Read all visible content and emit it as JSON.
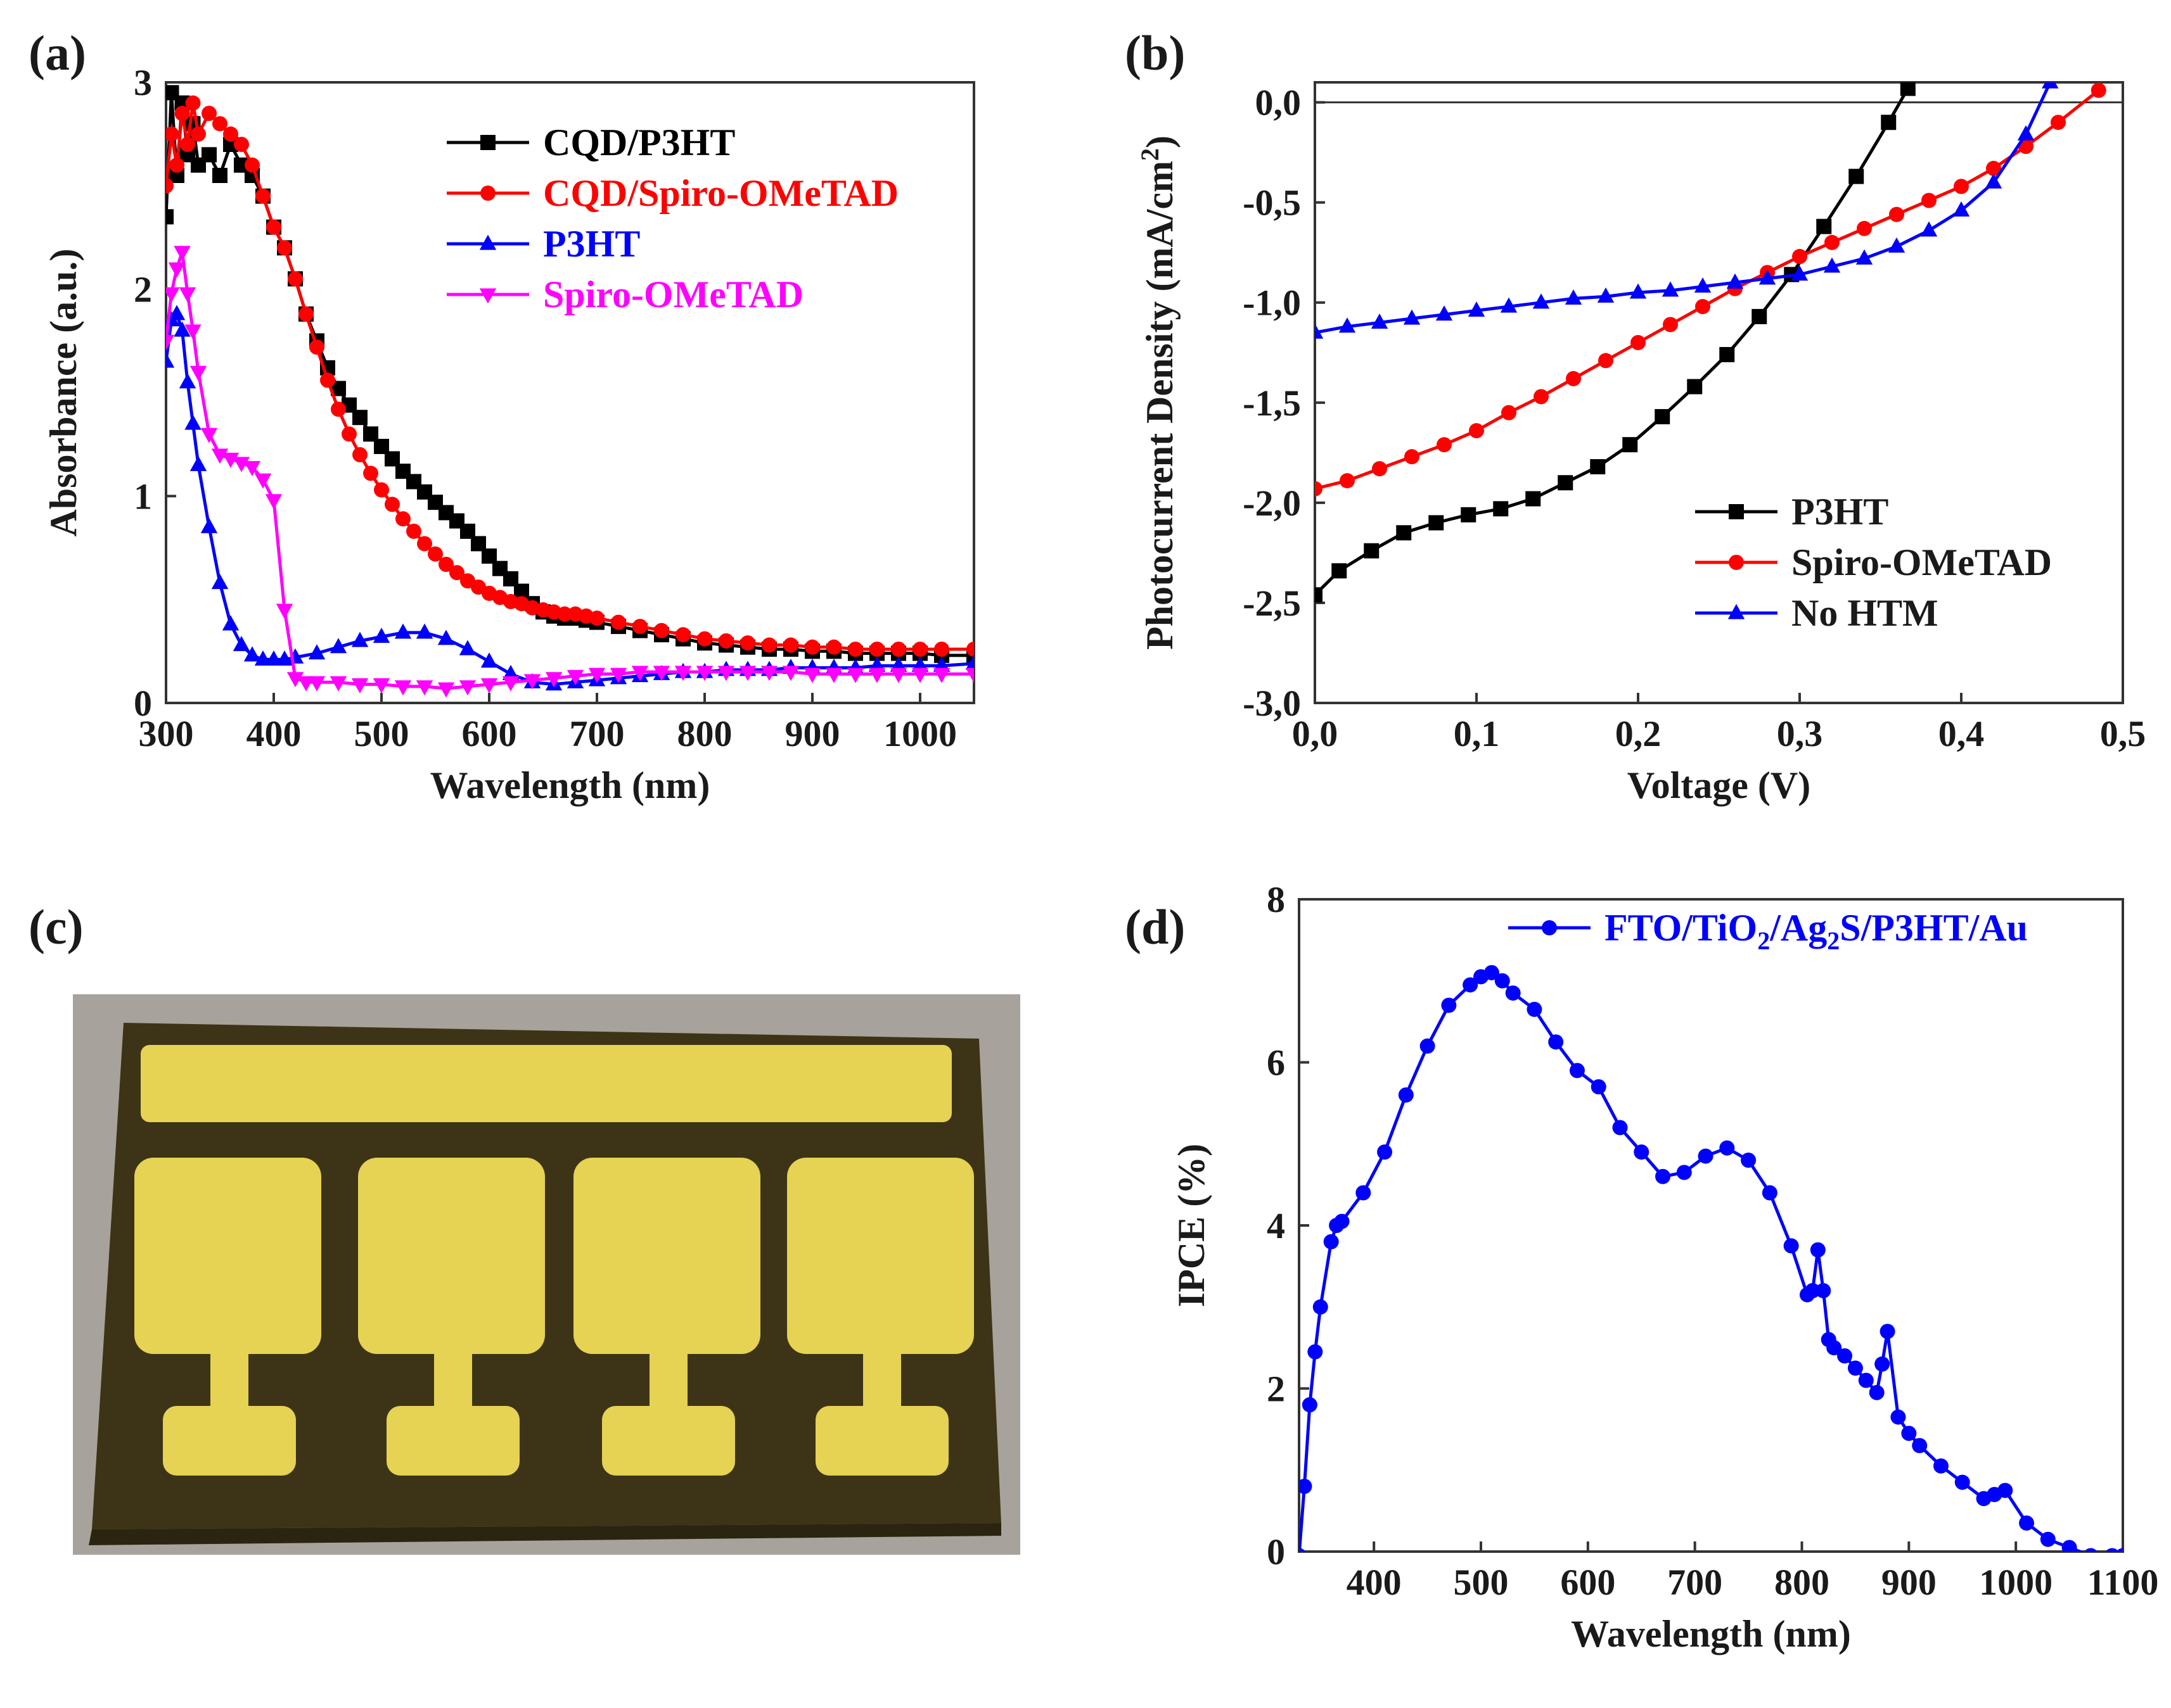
{
  "chart_data": [
    {
      "panel": "(a)",
      "type": "line",
      "xlabel": "Wavelength (nm)",
      "ylabel": "Absorbance (a.u.)",
      "xlim": [
        300,
        1050
      ],
      "ylim": [
        0,
        3
      ],
      "xticks": [
        "300",
        "400",
        "500",
        "600",
        "700",
        "800",
        "900",
        "1000"
      ],
      "yticks": [
        "0",
        "1",
        "2",
        "3"
      ],
      "legend_position": "top-right",
      "series": [
        {
          "name": "CQD/P3HT",
          "color": "#000000",
          "marker": "square",
          "x": [
            300,
            305,
            310,
            315,
            320,
            325,
            330,
            340,
            350,
            360,
            370,
            380,
            390,
            400,
            410,
            420,
            430,
            440,
            450,
            460,
            470,
            480,
            490,
            500,
            510,
            520,
            530,
            540,
            550,
            560,
            570,
            580,
            590,
            600,
            610,
            620,
            630,
            640,
            650,
            660,
            670,
            680,
            690,
            700,
            720,
            740,
            760,
            780,
            800,
            820,
            840,
            860,
            880,
            900,
            920,
            940,
            960,
            980,
            1000,
            1020,
            1050
          ],
          "y": [
            2.35,
            2.95,
            2.55,
            2.9,
            2.65,
            2.8,
            2.6,
            2.65,
            2.55,
            2.7,
            2.6,
            2.55,
            2.45,
            2.3,
            2.2,
            2.05,
            1.88,
            1.75,
            1.62,
            1.52,
            1.44,
            1.38,
            1.3,
            1.24,
            1.18,
            1.12,
            1.07,
            1.02,
            0.97,
            0.92,
            0.88,
            0.83,
            0.77,
            0.71,
            0.65,
            0.6,
            0.54,
            0.48,
            0.44,
            0.42,
            0.41,
            0.41,
            0.4,
            0.39,
            0.37,
            0.35,
            0.33,
            0.31,
            0.29,
            0.28,
            0.27,
            0.26,
            0.26,
            0.25,
            0.25,
            0.24,
            0.24,
            0.24,
            0.24,
            0.23,
            0.23
          ]
        },
        {
          "name": "CQD/Spiro-OMeTAD",
          "color": "#ff0000",
          "marker": "circle",
          "x": [
            300,
            305,
            310,
            315,
            320,
            325,
            330,
            340,
            350,
            360,
            370,
            380,
            390,
            400,
            410,
            420,
            430,
            440,
            450,
            460,
            470,
            480,
            490,
            500,
            510,
            520,
            530,
            540,
            550,
            560,
            570,
            580,
            590,
            600,
            610,
            620,
            630,
            640,
            650,
            660,
            670,
            680,
            690,
            700,
            720,
            740,
            760,
            780,
            800,
            820,
            840,
            860,
            880,
            900,
            920,
            940,
            960,
            980,
            1000,
            1020,
            1050
          ],
          "y": [
            2.5,
            2.75,
            2.6,
            2.85,
            2.7,
            2.9,
            2.75,
            2.85,
            2.8,
            2.75,
            2.7,
            2.6,
            2.45,
            2.3,
            2.2,
            2.05,
            1.88,
            1.72,
            1.56,
            1.42,
            1.3,
            1.2,
            1.11,
            1.03,
            0.96,
            0.89,
            0.83,
            0.77,
            0.72,
            0.67,
            0.63,
            0.59,
            0.56,
            0.53,
            0.51,
            0.49,
            0.48,
            0.46,
            0.45,
            0.44,
            0.43,
            0.43,
            0.42,
            0.41,
            0.39,
            0.37,
            0.35,
            0.33,
            0.31,
            0.3,
            0.29,
            0.28,
            0.28,
            0.27,
            0.27,
            0.26,
            0.26,
            0.26,
            0.26,
            0.26,
            0.26
          ]
        },
        {
          "name": "P3HT",
          "color": "#0000ff",
          "marker": "triangle-up",
          "x": [
            300,
            305,
            310,
            315,
            320,
            325,
            330,
            340,
            350,
            360,
            370,
            380,
            390,
            400,
            410,
            420,
            440,
            460,
            480,
            500,
            520,
            540,
            560,
            580,
            600,
            620,
            640,
            660,
            680,
            700,
            720,
            740,
            760,
            780,
            800,
            820,
            840,
            860,
            880,
            900,
            920,
            940,
            960,
            980,
            1000,
            1020,
            1050
          ],
          "y": [
            1.65,
            1.85,
            1.88,
            1.8,
            1.55,
            1.35,
            1.15,
            0.85,
            0.58,
            0.38,
            0.28,
            0.23,
            0.21,
            0.21,
            0.21,
            0.22,
            0.24,
            0.27,
            0.3,
            0.32,
            0.34,
            0.34,
            0.31,
            0.26,
            0.2,
            0.14,
            0.1,
            0.09,
            0.1,
            0.11,
            0.12,
            0.13,
            0.14,
            0.15,
            0.15,
            0.16,
            0.16,
            0.16,
            0.17,
            0.17,
            0.17,
            0.17,
            0.18,
            0.18,
            0.18,
            0.18,
            0.19
          ]
        },
        {
          "name": "Spiro-OMeTAD",
          "color": "#ff00ff",
          "marker": "triangle-down",
          "x": [
            300,
            305,
            310,
            315,
            320,
            325,
            330,
            340,
            350,
            360,
            370,
            380,
            390,
            400,
            410,
            420,
            430,
            440,
            460,
            480,
            500,
            520,
            540,
            560,
            580,
            600,
            620,
            640,
            660,
            680,
            700,
            720,
            740,
            760,
            780,
            800,
            820,
            840,
            860,
            880,
            900,
            920,
            940,
            960,
            980,
            1000,
            1020,
            1050
          ],
          "y": [
            1.75,
            1.98,
            2.1,
            2.18,
            1.98,
            1.8,
            1.6,
            1.3,
            1.2,
            1.18,
            1.16,
            1.14,
            1.08,
            0.98,
            0.45,
            0.12,
            0.1,
            0.1,
            0.1,
            0.09,
            0.09,
            0.08,
            0.08,
            0.07,
            0.08,
            0.09,
            0.1,
            0.11,
            0.12,
            0.13,
            0.14,
            0.14,
            0.15,
            0.15,
            0.15,
            0.15,
            0.15,
            0.15,
            0.15,
            0.15,
            0.14,
            0.14,
            0.14,
            0.14,
            0.14,
            0.14,
            0.14,
            0.14
          ]
        }
      ]
    },
    {
      "panel": "(b)",
      "type": "line",
      "xlabel": "Voltage (V)",
      "ylabel": "Photocurrent Density (mA/cm",
      "ylabel_superscript": "2",
      "ylabel_close": ")",
      "xlim": [
        0,
        0.5
      ],
      "ylim": [
        -3.0,
        0.1
      ],
      "xticks": [
        "0,0",
        "0,1",
        "0,2",
        "0,3",
        "0,4",
        "0,5"
      ],
      "yticks": [
        "0,0",
        "-0,5",
        "-1,0",
        "-1,5",
        "-2,0",
        "-2,5",
        "-3,0"
      ],
      "legend_position": "bottom-right",
      "series": [
        {
          "name": "P3HT",
          "color": "#000000",
          "marker": "square",
          "x": [
            0.0,
            0.015,
            0.035,
            0.055,
            0.075,
            0.095,
            0.115,
            0.135,
            0.155,
            0.175,
            0.195,
            0.215,
            0.235,
            0.255,
            0.275,
            0.295,
            0.315,
            0.335,
            0.355,
            0.367
          ],
          "y": [
            -2.46,
            -2.34,
            -2.24,
            -2.15,
            -2.1,
            -2.06,
            -2.03,
            -1.98,
            -1.9,
            -1.82,
            -1.71,
            -1.57,
            -1.42,
            -1.26,
            -1.07,
            -0.86,
            -0.62,
            -0.37,
            -0.1,
            0.07
          ]
        },
        {
          "name": "Spiro-OMeTAD",
          "color": "#ff0000",
          "marker": "circle",
          "x": [
            0.0,
            0.02,
            0.04,
            0.06,
            0.08,
            0.1,
            0.12,
            0.14,
            0.16,
            0.18,
            0.2,
            0.22,
            0.24,
            0.26,
            0.28,
            0.3,
            0.32,
            0.34,
            0.36,
            0.38,
            0.4,
            0.42,
            0.44,
            0.46,
            0.485
          ],
          "y": [
            -1.93,
            -1.89,
            -1.83,
            -1.77,
            -1.71,
            -1.64,
            -1.55,
            -1.47,
            -1.38,
            -1.29,
            -1.2,
            -1.11,
            -1.02,
            -0.93,
            -0.85,
            -0.77,
            -0.7,
            -0.63,
            -0.56,
            -0.49,
            -0.42,
            -0.33,
            -0.22,
            -0.1,
            0.06
          ]
        },
        {
          "name": "No HTM",
          "color": "#0000ff",
          "marker": "triangle-up",
          "x": [
            0.0,
            0.02,
            0.04,
            0.06,
            0.08,
            0.1,
            0.12,
            0.14,
            0.16,
            0.18,
            0.2,
            0.22,
            0.24,
            0.26,
            0.28,
            0.3,
            0.32,
            0.34,
            0.36,
            0.38,
            0.4,
            0.42,
            0.44,
            0.455
          ],
          "y": [
            -1.15,
            -1.12,
            -1.1,
            -1.08,
            -1.06,
            -1.04,
            -1.02,
            -1.0,
            -0.98,
            -0.97,
            -0.95,
            -0.94,
            -0.92,
            -0.9,
            -0.88,
            -0.86,
            -0.82,
            -0.78,
            -0.72,
            -0.64,
            -0.54,
            -0.4,
            -0.16,
            0.1
          ]
        }
      ]
    },
    {
      "panel": "(d)",
      "type": "line",
      "xlabel": "Wavelength (nm)",
      "ylabel": "IPCE (%)",
      "xlim": [
        330,
        1100
      ],
      "ylim": [
        0,
        8
      ],
      "xticks": [
        "400",
        "500",
        "600",
        "700",
        "800",
        "900",
        "1000",
        "1100"
      ],
      "yticks": [
        "0",
        "2",
        "4",
        "6",
        "8"
      ],
      "legend_position": "top-right",
      "series": [
        {
          "name": "FTO/TiO2/Ag2S/P3HT/Au",
          "legend_parts": [
            "FTO/TiO",
            "2",
            "/Ag",
            "2",
            "S/P3HT/Au"
          ],
          "color": "#0000ff",
          "marker": "circle",
          "x": [
            330,
            335,
            340,
            345,
            350,
            360,
            365,
            370,
            390,
            410,
            430,
            450,
            470,
            490,
            500,
            510,
            520,
            530,
            550,
            570,
            590,
            610,
            630,
            650,
            670,
            690,
            710,
            730,
            750,
            770,
            790,
            805,
            810,
            815,
            820,
            825,
            830,
            840,
            850,
            860,
            870,
            875,
            880,
            890,
            900,
            910,
            930,
            950,
            970,
            980,
            990,
            1010,
            1030,
            1050,
            1070,
            1090,
            1100
          ],
          "y": [
            -0.05,
            0.8,
            1.8,
            2.45,
            3.0,
            3.8,
            4.0,
            4.05,
            4.4,
            4.9,
            5.6,
            6.2,
            6.7,
            6.95,
            7.05,
            7.1,
            7.0,
            6.85,
            6.65,
            6.25,
            5.9,
            5.7,
            5.2,
            4.9,
            4.6,
            4.65,
            4.85,
            4.95,
            4.8,
            4.4,
            3.75,
            3.15,
            3.2,
            3.7,
            3.2,
            2.6,
            2.5,
            2.4,
            2.25,
            2.1,
            1.95,
            2.3,
            2.7,
            1.65,
            1.45,
            1.3,
            1.05,
            0.85,
            0.65,
            0.7,
            0.75,
            0.35,
            0.15,
            0.05,
            -0.05,
            -0.05,
            -0.05
          ]
        }
      ]
    }
  ],
  "panels": {
    "a_label": "(a)",
    "b_label": "(b)",
    "c_label": "(c)",
    "d_label": "(d)"
  },
  "photo": {
    "background_color": "#a8a29c",
    "glass_color": "#3d3417",
    "gold_color": "#e6d253",
    "pixel_count": 4
  }
}
